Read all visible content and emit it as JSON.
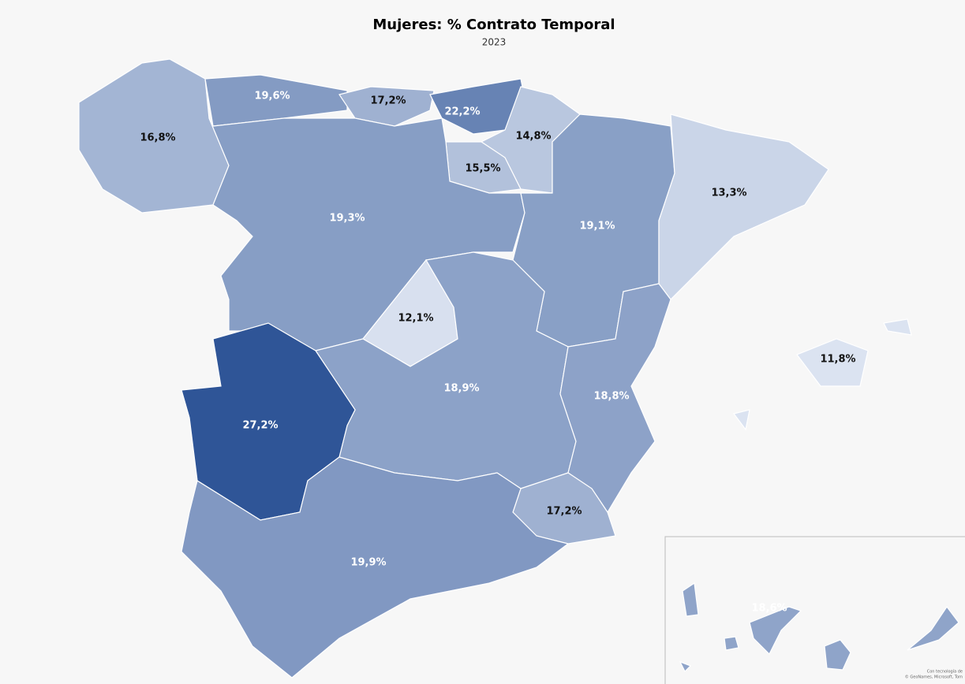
{
  "chart_data": {
    "type": "choropleth",
    "title": "Mujeres: % Contrato Temporal",
    "subtitle": "2023",
    "values": [
      16.8,
      19.6,
      17.2,
      22.2,
      14.8,
      15.5,
      19.3,
      19.1,
      13.3,
      12.1,
      11.8,
      18.9,
      18.8,
      27.2,
      17.2,
      19.9,
      18.6
    ],
    "value_labels": [
      "16,8%",
      "19,6%",
      "17,2%",
      "22,2%",
      "14,8%",
      "15,5%",
      "19,3%",
      "19,1%",
      "13,3%",
      "12,1%",
      "11,8%",
      "18,9%",
      "18,8%",
      "27,2%",
      "17,2%",
      "19,9%",
      "18,6%"
    ],
    "color_range": [
      "#dbe3f1",
      "#2f5597"
    ],
    "attribution": [
      "Con tecnología de",
      "© GeoNames, Microsoft, Tom"
    ]
  }
}
